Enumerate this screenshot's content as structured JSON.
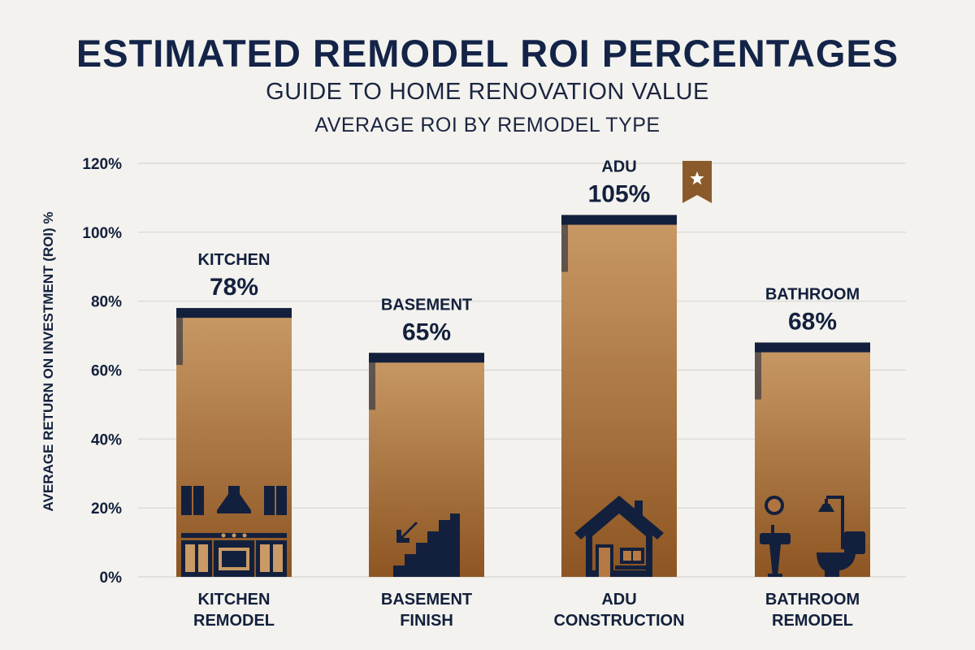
{
  "header": {
    "title": "ESTIMATED REMODEL ROI PERCENTAGES",
    "subtitle": "GUIDE TO HOME RENOVATION VALUE",
    "subtitle2": "AVERAGE ROI BY REMODEL TYPE"
  },
  "chart_data": {
    "type": "bar",
    "title": "ESTIMATED REMODEL ROI PERCENTAGES",
    "subtitle": "AVERAGE ROI BY REMODEL TYPE",
    "ylabel": "AVERAGE RETURN ON INVESTMENT (ROI) %",
    "xlabel": "",
    "ylim": [
      0,
      120
    ],
    "yticks": [
      0,
      20,
      40,
      60,
      80,
      100,
      120
    ],
    "ytick_labels": [
      "0%",
      "20%",
      "40%",
      "60%",
      "80%",
      "100%",
      "120%"
    ],
    "grid": true,
    "categories": [
      [
        "KITCHEN",
        "REMODEL"
      ],
      [
        "BASEMENT",
        "FINISH"
      ],
      [
        "ADU",
        "CONSTRUCTION"
      ],
      [
        "BATHROOM",
        "REMODEL"
      ]
    ],
    "bar_labels": [
      "KITCHEN",
      "BASEMENT",
      "ADU",
      "BATHROOM"
    ],
    "values": [
      78,
      65,
      105,
      68
    ],
    "value_labels": [
      "78%",
      "65%",
      "105%",
      "68%"
    ],
    "icons": [
      "kitchen-icon",
      "basement-stairs-icon",
      "house-icon",
      "bathroom-icon"
    ],
    "highlight": {
      "index": 2,
      "icon": "star-ribbon-icon"
    },
    "colors": {
      "bar_top": "#c99a66",
      "bar_bottom": "#8d5522",
      "bar_cap": "#13203d",
      "icon": "#13203d",
      "ribbon": "#8a5a2b",
      "grid": "#d6d6d2",
      "text": "#13203d"
    }
  }
}
